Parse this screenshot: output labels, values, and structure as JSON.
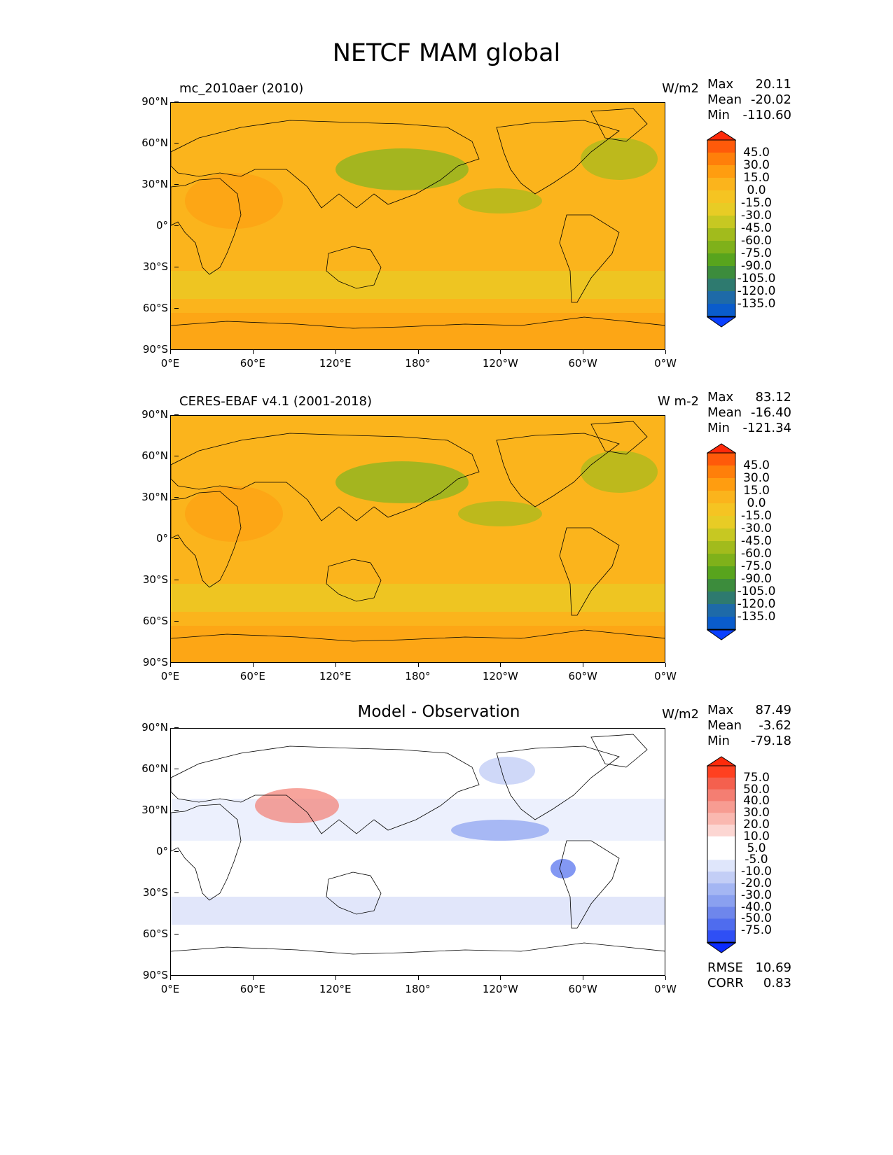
{
  "figure_title": "NETCF MAM global",
  "x_ticks": [
    "0°E",
    "60°E",
    "120°E",
    "180°",
    "120°W",
    "60°W",
    "0°W"
  ],
  "y_ticks": [
    "90°N",
    "60°N",
    "30°N",
    "0°",
    "30°S",
    "60°S",
    "90°S"
  ],
  "panels": [
    {
      "title_left": "mc_2010aer (2010)",
      "title_center": "",
      "units": "W/m2",
      "stats": [
        {
          "label": "Max",
          "value": "20.11"
        },
        {
          "label": "Mean",
          "value": "-20.02"
        },
        {
          "label": "Min",
          "value": "-110.60"
        }
      ],
      "colorbar_labels": [
        "45.0",
        "30.0",
        "15.0",
        "0.0",
        "-15.0",
        "-30.0",
        "-45.0",
        "-60.0",
        "-75.0",
        "-90.0",
        "-105.0",
        "-120.0",
        "-135.0"
      ],
      "colorbar_colors": [
        "#ff2a0a",
        "#ff5a0a",
        "#ff7f0a",
        "#ff9d10",
        "#fbb41c",
        "#f5c422",
        "#e8cc25",
        "#c7c822",
        "#a2bb1c",
        "#7fb11a",
        "#58a41d",
        "#3c8c3c",
        "#2e7a6f",
        "#1e6aa8",
        "#0a5ccc",
        "#0a40ff"
      ]
    },
    {
      "title_left": "CERES-EBAF v4.1 (2001-2018)",
      "title_center": "",
      "units": "W m-2",
      "stats": [
        {
          "label": "Max",
          "value": "83.12"
        },
        {
          "label": "Mean",
          "value": "-16.40"
        },
        {
          "label": "Min",
          "value": "-121.34"
        }
      ],
      "colorbar_labels": [
        "45.0",
        "30.0",
        "15.0",
        "0.0",
        "-15.0",
        "-30.0",
        "-45.0",
        "-60.0",
        "-75.0",
        "-90.0",
        "-105.0",
        "-120.0",
        "-135.0"
      ],
      "colorbar_colors": [
        "#ff2a0a",
        "#ff5a0a",
        "#ff7f0a",
        "#ff9d10",
        "#fbb41c",
        "#f5c422",
        "#e8cc25",
        "#c7c822",
        "#a2bb1c",
        "#7fb11a",
        "#58a41d",
        "#3c8c3c",
        "#2e7a6f",
        "#1e6aa8",
        "#0a5ccc",
        "#0a40ff"
      ]
    },
    {
      "title_left": "",
      "title_center": "Model - Observation",
      "units": "W/m2",
      "stats": [
        {
          "label": "Max",
          "value": "87.49"
        },
        {
          "label": "Mean",
          "value": "-3.62"
        },
        {
          "label": "Min",
          "value": "-79.18"
        }
      ],
      "colorbar_labels": [
        "75.0",
        "50.0",
        "40.0",
        "30.0",
        "20.0",
        "10.0",
        "5.0",
        "-5.0",
        "-10.0",
        "-20.0",
        "-30.0",
        "-40.0",
        "-50.0",
        "-75.0"
      ],
      "colorbar_colors": [
        "#ff2a0a",
        "#ff4020",
        "#f4604e",
        "#f47e72",
        "#f79c92",
        "#fab8b0",
        "#fcd6d2",
        "#ffffff",
        "#ffffff",
        "#dfe6fb",
        "#c3cef6",
        "#a4b6f3",
        "#8aa0f0",
        "#6e86ec",
        "#4f6cee",
        "#2f4ff5",
        "#0a2aff"
      ],
      "extra_stats": [
        {
          "label": "RMSE",
          "value": "10.69"
        },
        {
          "label": "CORR",
          "value": "0.83"
        }
      ]
    }
  ],
  "map_palettes": {
    "field": [
      "#fbb41c",
      "#f5c422",
      "#e8cc25",
      "#ff9d10"
    ],
    "diff": [
      "#ffffff",
      "#dfe6fb",
      "#c3cef6",
      "#fcd6d2",
      "#fab8b0"
    ]
  }
}
